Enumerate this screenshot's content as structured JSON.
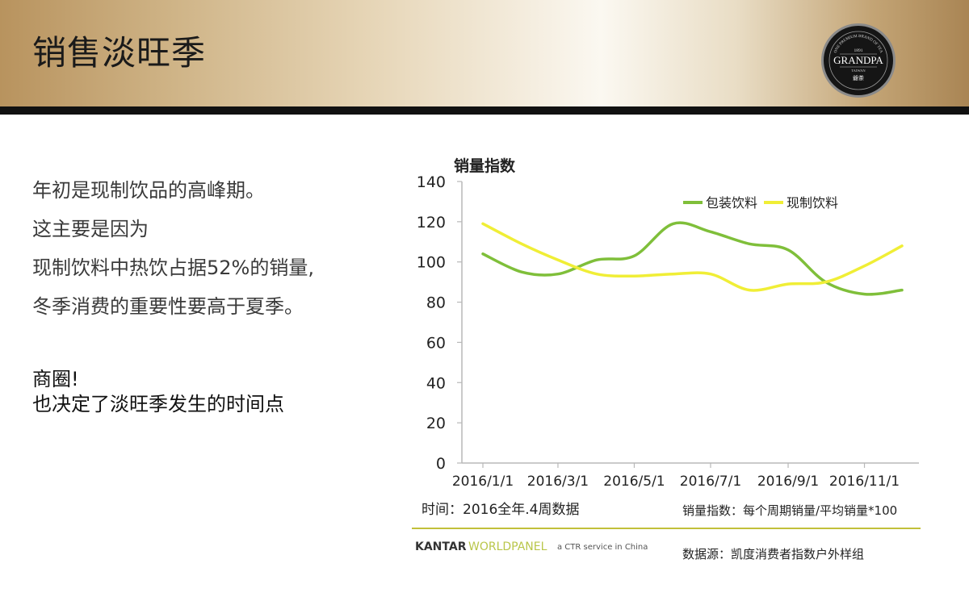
{
  "header": {
    "title": "销售淡旺季",
    "logo": {
      "year": "1891",
      "brand": "GRANDPA",
      "region": "TAIWAN",
      "arc_text": "ONE PREMIUM BRAND OF TEA",
      "cn": "爺茶"
    }
  },
  "body": {
    "lines": [
      "年初是现制饮品的高峰期。",
      "这主要是因为",
      "现制饮料中热饮占据52%的销量,",
      "冬季消费的重要性要高于夏季。"
    ],
    "note_lines": [
      "商圈!",
      "也决定了淡旺季发生的时间点"
    ]
  },
  "footer": {
    "time_note": "时间：2016全年.4周数据",
    "index_note": "销量指数：每个周期销量/平均销量*100",
    "source_note": "数据源：凯度消费者指数户外样组",
    "kantar_name": "KANTAR",
    "worldpanel": "WORLDPANEL",
    "ctr_text": "a CTR service in China"
  },
  "chart_data": {
    "type": "line",
    "ylabel": "销量指数",
    "ylim": [
      0,
      140
    ],
    "yticks": [
      0,
      20,
      40,
      60,
      80,
      100,
      120,
      140
    ],
    "xtick_labels": [
      "2016/1/1",
      "2016/3/1",
      "2016/5/1",
      "2016/7/1",
      "2016/9/1",
      "2016/11/1"
    ],
    "x": [
      "2016/1/1",
      "2016/2/1",
      "2016/3/1",
      "2016/4/1",
      "2016/5/1",
      "2016/6/1",
      "2016/7/1",
      "2016/8/1",
      "2016/9/1",
      "2016/10/1",
      "2016/11/1",
      "2016/12/1"
    ],
    "legend_position": "top-right",
    "grid": false,
    "series": [
      {
        "name": "包装饮料",
        "color": "#7fbf3a",
        "values": [
          104,
          95,
          94,
          101,
          103,
          119,
          115,
          109,
          106,
          90,
          84,
          86
        ]
      },
      {
        "name": "现制饮料",
        "color": "#f0ee36",
        "values": [
          119,
          109,
          101,
          94,
          93,
          94,
          94,
          86,
          89,
          90,
          98,
          108
        ]
      }
    ]
  }
}
